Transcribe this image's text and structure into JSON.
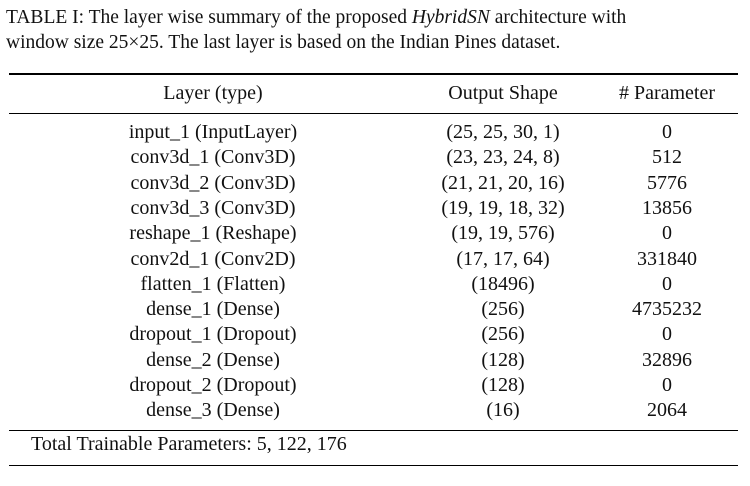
{
  "caption": {
    "prefix": "TABLE I: The layer wise summary of the proposed ",
    "model": "HybridSN",
    "middle": " architecture with",
    "line2": "window size 25×25. The last layer is based on the Indian Pines dataset."
  },
  "table": {
    "headers": [
      "Layer (type)",
      "Output Shape",
      "# Parameter"
    ],
    "rows": [
      [
        "input_1 (InputLayer)",
        "(25, 25, 30, 1)",
        "0"
      ],
      [
        "conv3d_1 (Conv3D)",
        "(23, 23, 24, 8)",
        "512"
      ],
      [
        "conv3d_2 (Conv3D)",
        "(21, 21, 20, 16)",
        "5776"
      ],
      [
        "conv3d_3 (Conv3D)",
        "(19, 19, 18, 32)",
        "13856"
      ],
      [
        "reshape_1 (Reshape)",
        "(19, 19, 576)",
        "0"
      ],
      [
        "conv2d_1 (Conv2D)",
        "(17, 17, 64)",
        "331840"
      ],
      [
        "flatten_1 (Flatten)",
        "(18496)",
        "0"
      ],
      [
        "dense_1 (Dense)",
        "(256)",
        "4735232"
      ],
      [
        "dropout_1 (Dropout)",
        "(256)",
        "0"
      ],
      [
        "dense_2 (Dense)",
        "(128)",
        "32896"
      ],
      [
        "dropout_2 (Dropout)",
        "(128)",
        "0"
      ],
      [
        "dense_3 (Dense)",
        "(16)",
        "2064"
      ]
    ],
    "total_label": "Total Trainable Parameters: ",
    "total_value": "5, 122, 176"
  }
}
